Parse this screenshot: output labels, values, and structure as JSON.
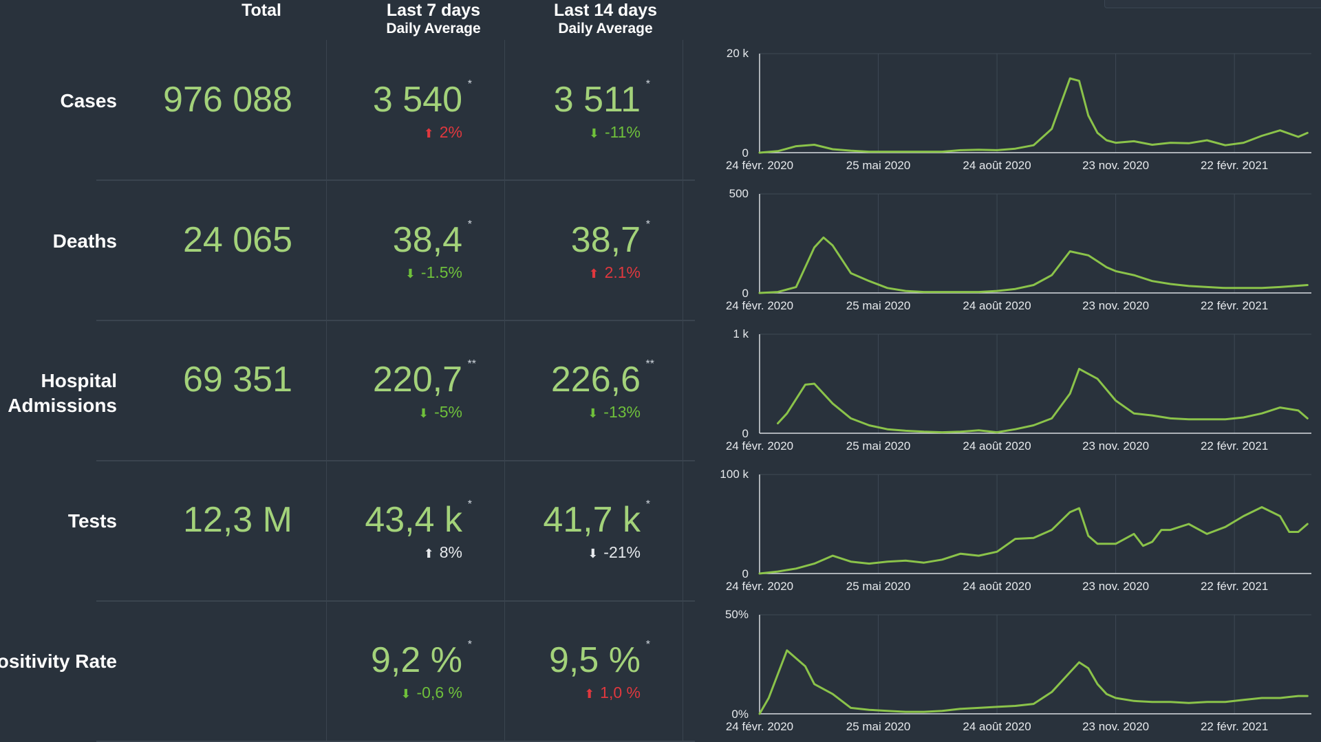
{
  "header": {
    "total": "Total",
    "last7": "Last 7 days",
    "last7_sub": "Daily Average",
    "last14": "Last 14 days",
    "last14_sub": "Daily Average"
  },
  "x_tick_labels": [
    "24 févr. 2020",
    "25 mai 2020",
    "24 août 2020",
    "23 nov. 2020",
    "22 févr. 2021"
  ],
  "colors": {
    "line": "#8bc34a",
    "good": "#6fc03b",
    "bad": "#e0383e",
    "value": "#a3d27a"
  },
  "rows": [
    {
      "label": "Cases",
      "total": "976 088",
      "last7": {
        "value": "3 540",
        "star": "*",
        "change": "2%",
        "dir": "up",
        "tone": "bad"
      },
      "last14": {
        "value": "3 511",
        "star": "*",
        "change": "-11%",
        "dir": "down",
        "tone": "good"
      }
    },
    {
      "label": "Deaths",
      "total": "24 065",
      "last7": {
        "value": "38,4",
        "star": "*",
        "change": "-1.5%",
        "dir": "down",
        "tone": "good"
      },
      "last14": {
        "value": "38,7",
        "star": "*",
        "change": "2.1%",
        "dir": "up",
        "tone": "bad"
      }
    },
    {
      "label": "Hospital Admissions",
      "label_line1": "Hospital",
      "label_line2": "Admissions",
      "total": "69 351",
      "last7": {
        "value": "220,7",
        "star": "**",
        "change": "-5%",
        "dir": "down",
        "tone": "good"
      },
      "last14": {
        "value": "226,6",
        "star": "**",
        "change": "-13%",
        "dir": "down",
        "tone": "good"
      }
    },
    {
      "label": "Tests",
      "total": "12,3 M",
      "last7": {
        "value": "43,4 k",
        "star": "*",
        "change": "8%",
        "dir": "up",
        "tone": "neutral"
      },
      "last14": {
        "value": "41,7 k",
        "star": "*",
        "change": "-21%",
        "dir": "down",
        "tone": "neutral"
      }
    },
    {
      "label": "Positivity Rate",
      "label_visible": "ositivity Rate",
      "total": "",
      "last7": {
        "value": "9,2 %",
        "star": "*",
        "change": "-0,6 %",
        "dir": "down",
        "tone": "good"
      },
      "last14": {
        "value": "9,5 %",
        "star": "*",
        "change": "1,0 %",
        "dir": "up",
        "tone": "bad"
      }
    }
  ],
  "chart_data": [
    {
      "type": "line",
      "name": "cases-chart",
      "x": [
        "2020-02-24",
        "2020-03-09",
        "2020-03-23",
        "2020-04-06",
        "2020-04-20",
        "2020-05-04",
        "2020-05-18",
        "2020-06-01",
        "2020-06-15",
        "2020-06-29",
        "2020-07-13",
        "2020-07-27",
        "2020-08-10",
        "2020-08-24",
        "2020-09-07",
        "2020-09-21",
        "2020-10-05",
        "2020-10-19",
        "2020-10-26",
        "2020-11-02",
        "2020-11-09",
        "2020-11-16",
        "2020-11-23",
        "2020-12-07",
        "2020-12-21",
        "2021-01-04",
        "2021-01-18",
        "2021-02-01",
        "2021-02-15",
        "2021-03-01",
        "2021-03-15",
        "2021-03-29",
        "2021-04-12",
        "2021-04-19"
      ],
      "y": [
        0,
        300,
        1300,
        1600,
        700,
        400,
        200,
        200,
        200,
        200,
        200,
        500,
        600,
        500,
        800,
        1500,
        4800,
        15000,
        14500,
        7500,
        4000,
        2500,
        2000,
        2300,
        1600,
        2000,
        1900,
        2500,
        1500,
        2000,
        3400,
        4500,
        3200,
        4000
      ],
      "ylim": [
        0,
        20000
      ],
      "y_ticks": [
        "0",
        "20 k"
      ]
    },
    {
      "type": "line",
      "name": "deaths-chart",
      "x": [
        "2020-02-24",
        "2020-03-09",
        "2020-03-23",
        "2020-04-06",
        "2020-04-13",
        "2020-04-20",
        "2020-05-04",
        "2020-05-18",
        "2020-06-01",
        "2020-06-15",
        "2020-06-29",
        "2020-07-13",
        "2020-07-27",
        "2020-08-10",
        "2020-08-24",
        "2020-09-07",
        "2020-09-21",
        "2020-10-05",
        "2020-10-19",
        "2020-11-02",
        "2020-11-09",
        "2020-11-16",
        "2020-11-23",
        "2020-12-07",
        "2020-12-21",
        "2021-01-04",
        "2021-01-18",
        "2021-02-01",
        "2021-02-15",
        "2021-03-01",
        "2021-03-15",
        "2021-03-29",
        "2021-04-19"
      ],
      "y": [
        0,
        5,
        30,
        230,
        280,
        240,
        100,
        60,
        25,
        10,
        5,
        5,
        5,
        5,
        10,
        20,
        40,
        90,
        210,
        190,
        160,
        130,
        110,
        90,
        60,
        45,
        35,
        30,
        25,
        25,
        25,
        30,
        40
      ],
      "ylim": [
        0,
        500
      ],
      "y_ticks": [
        "0",
        "500"
      ]
    },
    {
      "type": "line",
      "name": "hospital-admissions-chart",
      "x": [
        "2020-03-09",
        "2020-03-16",
        "2020-03-30",
        "2020-04-06",
        "2020-04-20",
        "2020-05-04",
        "2020-05-18",
        "2020-06-01",
        "2020-06-15",
        "2020-06-29",
        "2020-07-13",
        "2020-07-27",
        "2020-08-10",
        "2020-08-24",
        "2020-09-07",
        "2020-09-21",
        "2020-10-05",
        "2020-10-19",
        "2020-10-26",
        "2020-11-09",
        "2020-11-23",
        "2020-12-07",
        "2020-12-21",
        "2021-01-04",
        "2021-01-18",
        "2021-02-01",
        "2021-02-15",
        "2021-03-01",
        "2021-03-15",
        "2021-03-29",
        "2021-04-12",
        "2021-04-19"
      ],
      "y": [
        100,
        200,
        490,
        500,
        300,
        150,
        80,
        40,
        25,
        15,
        10,
        15,
        30,
        10,
        40,
        80,
        150,
        400,
        650,
        550,
        330,
        200,
        180,
        150,
        140,
        140,
        140,
        160,
        200,
        260,
        230,
        150
      ],
      "ylim": [
        0,
        1000
      ],
      "y_ticks": [
        "0",
        "1 k"
      ]
    },
    {
      "type": "line",
      "name": "tests-chart",
      "x": [
        "2020-02-24",
        "2020-03-09",
        "2020-03-23",
        "2020-04-06",
        "2020-04-20",
        "2020-05-04",
        "2020-05-18",
        "2020-06-01",
        "2020-06-15",
        "2020-06-29",
        "2020-07-13",
        "2020-07-27",
        "2020-08-10",
        "2020-08-24",
        "2020-09-07",
        "2020-09-21",
        "2020-10-05",
        "2020-10-19",
        "2020-10-26",
        "2020-11-02",
        "2020-11-09",
        "2020-11-16",
        "2020-11-23",
        "2020-12-07",
        "2020-12-14",
        "2020-12-21",
        "2020-12-28",
        "2021-01-04",
        "2021-01-18",
        "2021-02-01",
        "2021-02-15",
        "2021-03-01",
        "2021-03-15",
        "2021-03-29",
        "2021-04-05",
        "2021-04-12",
        "2021-04-19"
      ],
      "y": [
        0,
        2000,
        5000,
        10000,
        18000,
        12000,
        10000,
        12000,
        13000,
        11000,
        14000,
        20000,
        18000,
        22000,
        35000,
        36000,
        44000,
        62000,
        66000,
        38000,
        30000,
        30000,
        30000,
        40000,
        28000,
        32000,
        44000,
        44000,
        50000,
        40000,
        47000,
        58000,
        67000,
        58000,
        42000,
        42000,
        50000
      ],
      "ylim": [
        0,
        100000
      ],
      "y_ticks": [
        "0",
        "100 k"
      ]
    },
    {
      "type": "line",
      "name": "positivity-rate-chart",
      "x": [
        "2020-02-24",
        "2020-03-02",
        "2020-03-09",
        "2020-03-16",
        "2020-03-30",
        "2020-04-06",
        "2020-04-20",
        "2020-05-04",
        "2020-05-18",
        "2020-06-01",
        "2020-06-15",
        "2020-06-29",
        "2020-07-13",
        "2020-07-27",
        "2020-08-10",
        "2020-08-24",
        "2020-09-07",
        "2020-09-21",
        "2020-10-05",
        "2020-10-19",
        "2020-10-26",
        "2020-11-02",
        "2020-11-09",
        "2020-11-16",
        "2020-11-23",
        "2020-12-07",
        "2020-12-21",
        "2021-01-04",
        "2021-01-18",
        "2021-02-01",
        "2021-02-15",
        "2021-03-01",
        "2021-03-15",
        "2021-03-29",
        "2021-04-05",
        "2021-04-12",
        "2021-04-19"
      ],
      "y": [
        0,
        8,
        20,
        32,
        24,
        15,
        10,
        3,
        2,
        1.5,
        1,
        1,
        1.5,
        2.5,
        3,
        3.5,
        4,
        5,
        11,
        21,
        26,
        23,
        15,
        10,
        8,
        6.5,
        6,
        6,
        5.5,
        6,
        6,
        7,
        8,
        8,
        8.5,
        9,
        9
      ],
      "ylim": [
        0,
        50
      ],
      "y_ticks": [
        "0%",
        "50%"
      ]
    }
  ]
}
